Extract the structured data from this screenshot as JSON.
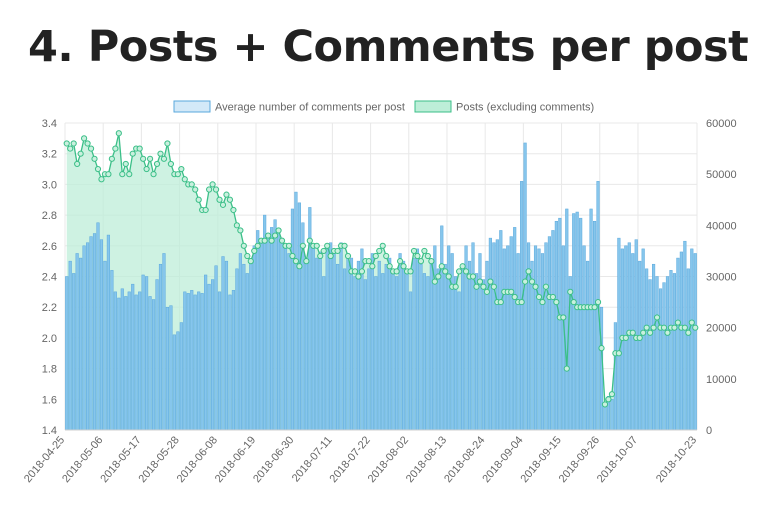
{
  "title": "4. Posts + Comments per post",
  "chart_data": {
    "type": "bar+line",
    "title": "4. Posts + Comments per post",
    "legend_position": "top-center",
    "grid": true,
    "x_start": "2018-04-25",
    "x_tick_labels": [
      "2018-04-25",
      "2018-05-06",
      "2018-05-17",
      "2018-05-28",
      "2018-06-08",
      "2018-06-19",
      "2018-06-30",
      "2018-07-11",
      "2018-07-22",
      "2018-08-02",
      "2018-08-13",
      "2018-08-24",
      "2018-09-04",
      "2018-09-15",
      "2018-09-26",
      "2018-10-07",
      "2018-10-23"
    ],
    "y_left": {
      "range": [
        1.4,
        3.4
      ],
      "ticks": [
        "1.4",
        "1.6",
        "1.8",
        "2.0",
        "2.2",
        "2.4",
        "2.6",
        "2.8",
        "3.0",
        "3.2",
        "3.4"
      ]
    },
    "y_right": {
      "range": [
        0,
        60000
      ],
      "ticks": [
        "0",
        "10000",
        "20000",
        "30000",
        "40000",
        "50000",
        "60000"
      ]
    },
    "colors": {
      "bars_fill": "#86c6ec",
      "bars_stroke": "#5aa8dc",
      "posts_line": "#3bbf88",
      "posts_fill": "#bdeed8",
      "grid": "#e8e8e8"
    },
    "series": [
      {
        "name": "Average number of comments per post",
        "type": "bar",
        "axis": "left",
        "values": [
          2.4,
          2.5,
          2.42,
          2.55,
          2.52,
          2.6,
          2.62,
          2.66,
          2.68,
          2.75,
          2.64,
          2.5,
          2.67,
          2.44,
          2.3,
          2.26,
          2.32,
          2.27,
          2.3,
          2.35,
          2.28,
          2.3,
          2.41,
          2.4,
          2.27,
          2.25,
          2.38,
          2.48,
          2.55,
          2.2,
          2.21,
          2.02,
          2.04,
          2.1,
          2.3,
          2.29,
          2.31,
          2.28,
          2.3,
          2.29,
          2.41,
          2.35,
          2.38,
          2.47,
          2.3,
          2.53,
          2.5,
          2.28,
          2.31,
          2.45,
          2.55,
          2.48,
          2.42,
          2.5,
          2.6,
          2.7,
          2.62,
          2.8,
          2.68,
          2.72,
          2.77,
          2.7,
          2.65,
          2.6,
          2.55,
          2.84,
          2.95,
          2.88,
          2.75,
          2.5,
          2.85,
          2.6,
          2.52,
          2.56,
          2.4,
          2.58,
          2.62,
          2.55,
          2.48,
          2.62,
          2.45,
          2.55,
          2.52,
          2.4,
          2.5,
          2.58,
          2.38,
          2.45,
          2.55,
          2.4,
          2.5,
          2.42,
          2.48,
          2.52,
          2.44,
          2.4,
          2.55,
          2.5,
          2.45,
          2.3,
          2.52,
          2.58,
          2.48,
          2.42,
          2.4,
          2.5,
          2.6,
          2.45,
          2.73,
          2.48,
          2.6,
          2.55,
          2.4,
          2.3,
          2.45,
          2.6,
          2.5,
          2.62,
          2.42,
          2.55,
          2.38,
          2.5,
          2.65,
          2.62,
          2.64,
          2.7,
          2.58,
          2.6,
          2.66,
          2.72,
          2.55,
          3.02,
          3.27,
          2.62,
          2.5,
          2.6,
          2.58,
          2.55,
          2.62,
          2.66,
          2.7,
          2.76,
          2.78,
          2.6,
          2.84,
          2.4,
          2.81,
          2.82,
          2.78,
          2.6,
          2.5,
          2.84,
          2.76,
          3.02,
          2.2,
          1.55,
          1.62,
          1.6,
          2.1,
          2.65,
          2.58,
          2.6,
          2.62,
          2.55,
          2.64,
          2.5,
          2.58,
          2.45,
          2.38,
          2.48,
          2.4,
          2.32,
          2.36,
          2.4,
          2.44,
          2.42,
          2.52,
          2.56,
          2.63,
          2.45,
          2.58,
          2.55
        ]
      },
      {
        "name": "Posts (excluding comments)",
        "type": "area-line",
        "axis": "right",
        "values": [
          56000,
          55000,
          56000,
          52000,
          54000,
          57000,
          56000,
          55000,
          53000,
          51000,
          49000,
          50000,
          50000,
          53000,
          55000,
          58000,
          50000,
          52000,
          50000,
          54000,
          55000,
          55000,
          53000,
          51000,
          53000,
          50000,
          52000,
          54000,
          53000,
          56000,
          52000,
          50000,
          50000,
          51000,
          49000,
          48000,
          48000,
          47000,
          45000,
          43000,
          43000,
          47000,
          48000,
          47000,
          45000,
          44000,
          46000,
          45000,
          43000,
          40000,
          39000,
          36000,
          34000,
          33000,
          35000,
          36000,
          37000,
          37000,
          38000,
          37000,
          38000,
          39000,
          37000,
          36000,
          36000,
          34000,
          33000,
          32000,
          36000,
          33000,
          37000,
          36000,
          36000,
          34000,
          35000,
          36000,
          34000,
          35000,
          35000,
          36000,
          36000,
          34000,
          31000,
          31000,
          30000,
          31000,
          33000,
          33000,
          32000,
          34000,
          35000,
          36000,
          34000,
          32000,
          31000,
          31000,
          33000,
          32000,
          31000,
          31000,
          35000,
          34000,
          33000,
          35000,
          34000,
          33000,
          29000,
          30000,
          32000,
          31000,
          30000,
          28000,
          28000,
          31000,
          32000,
          31000,
          30000,
          30000,
          28000,
          29000,
          28000,
          27000,
          29000,
          28000,
          25000,
          25000,
          27000,
          27000,
          27000,
          26000,
          25000,
          25000,
          29000,
          31000,
          29000,
          28000,
          26000,
          25000,
          28000,
          26000,
          26000,
          25000,
          22000,
          22000,
          12000,
          27000,
          25000,
          24000,
          24000,
          24000,
          24000,
          24000,
          24000,
          25000,
          16000,
          5000,
          6000,
          7000,
          15000,
          15000,
          18000,
          18000,
          19000,
          19000,
          18000,
          18000,
          19000,
          20000,
          19000,
          20000,
          22000,
          20000,
          20000,
          19000,
          20000,
          20000,
          21000,
          20000,
          20000,
          19000,
          21000,
          20000
        ]
      }
    ]
  }
}
